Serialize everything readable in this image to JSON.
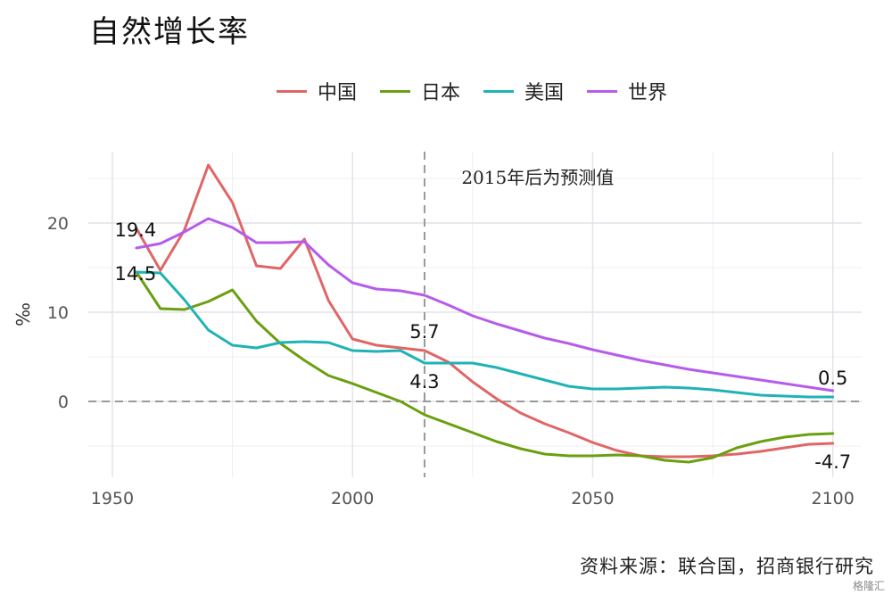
{
  "title": "自然增长率",
  "legend": [
    {
      "name": "中国",
      "color": "#E06666"
    },
    {
      "name": "日本",
      "color": "#6AA00F"
    },
    {
      "name": "美国",
      "color": "#1FB3B5"
    },
    {
      "name": "世界",
      "color": "#B65CEB"
    }
  ],
  "source": "资料来源：联合国，招商银行研究",
  "watermark": "格隆汇",
  "chart_data": {
    "type": "line",
    "title": "自然增长率",
    "xlabel": "",
    "ylabel": "‰",
    "xlim": [
      1945,
      2106
    ],
    "ylim": [
      -8.5,
      28
    ],
    "xticks": [
      1950,
      2000,
      2050,
      2100
    ],
    "yticks": [
      0,
      10,
      20
    ],
    "grid": true,
    "legend_position": "top",
    "reference_lines": [
      {
        "axis": "y",
        "value": 0,
        "style": "dashed"
      },
      {
        "axis": "x",
        "value": 2015,
        "style": "dashed"
      }
    ],
    "annotation": {
      "text": "2015年后为预测值",
      "x": 2016,
      "y": 24.9
    },
    "series": [
      {
        "name": "中国",
        "color": "#E06666",
        "x": [
          1955,
          1960,
          1965,
          1970,
          1975,
          1980,
          1985,
          1990,
          1995,
          2000,
          2005,
          2010,
          2015,
          2020,
          2025,
          2030,
          2035,
          2040,
          2045,
          2050,
          2055,
          2060,
          2065,
          2070,
          2075,
          2080,
          2085,
          2090,
          2095,
          2100
        ],
        "values": [
          19.4,
          14.7,
          19.2,
          26.5,
          22.3,
          15.2,
          14.9,
          18.2,
          11.3,
          7.0,
          6.3,
          6.0,
          5.7,
          4.4,
          2.2,
          0.3,
          -1.3,
          -2.5,
          -3.5,
          -4.6,
          -5.5,
          -6.1,
          -6.2,
          -6.2,
          -6.1,
          -5.9,
          -5.6,
          -5.2,
          -4.8,
          -4.7
        ]
      },
      {
        "name": "日本",
        "color": "#6AA00F",
        "x": [
          1955,
          1960,
          1965,
          1970,
          1975,
          1980,
          1985,
          1990,
          1995,
          2000,
          2005,
          2010,
          2015,
          2020,
          2025,
          2030,
          2035,
          2040,
          2045,
          2050,
          2055,
          2060,
          2065,
          2070,
          2075,
          2080,
          2085,
          2090,
          2095,
          2100
        ],
        "values": [
          14.5,
          10.4,
          10.3,
          11.2,
          12.5,
          9.0,
          6.5,
          4.6,
          2.9,
          2.0,
          1.0,
          0.0,
          -1.5,
          -2.5,
          -3.5,
          -4.5,
          -5.3,
          -5.9,
          -6.1,
          -6.1,
          -6.0,
          -6.1,
          -6.6,
          -6.8,
          -6.3,
          -5.2,
          -4.5,
          -4.0,
          -3.7,
          -3.6
        ]
      },
      {
        "name": "美国",
        "color": "#1FB3B5",
        "x": [
          1955,
          1960,
          1965,
          1970,
          1975,
          1980,
          1985,
          1990,
          1995,
          2000,
          2005,
          2010,
          2015,
          2020,
          2025,
          2030,
          2035,
          2040,
          2045,
          2050,
          2055,
          2060,
          2065,
          2070,
          2075,
          2080,
          2085,
          2090,
          2095,
          2100
        ],
        "values": [
          14.5,
          14.4,
          11.4,
          8.0,
          6.3,
          6.0,
          6.6,
          6.7,
          6.6,
          5.7,
          5.6,
          5.7,
          4.3,
          4.3,
          4.3,
          3.8,
          3.1,
          2.4,
          1.7,
          1.4,
          1.4,
          1.5,
          1.6,
          1.5,
          1.3,
          1.0,
          0.7,
          0.6,
          0.5,
          0.5
        ]
      },
      {
        "name": "世界",
        "color": "#B65CEB",
        "x": [
          1955,
          1960,
          1965,
          1970,
          1975,
          1980,
          1985,
          1990,
          1995,
          2000,
          2005,
          2010,
          2015,
          2020,
          2025,
          2030,
          2035,
          2040,
          2045,
          2050,
          2055,
          2060,
          2065,
          2070,
          2075,
          2080,
          2085,
          2090,
          2095,
          2100
        ],
        "values": [
          17.2,
          17.7,
          19.0,
          20.5,
          19.5,
          17.8,
          17.8,
          17.9,
          15.3,
          13.3,
          12.6,
          12.4,
          11.9,
          10.8,
          9.6,
          8.7,
          7.9,
          7.1,
          6.5,
          5.8,
          5.2,
          4.6,
          4.1,
          3.6,
          3.2,
          2.8,
          2.4,
          2.0,
          1.6,
          1.2
        ]
      }
    ],
    "data_labels": [
      {
        "text": "19.4",
        "series": "中国",
        "x": 1955,
        "y": 19.4,
        "anchor": "left"
      },
      {
        "text": "14.5",
        "series": "日本",
        "x": 1955,
        "y": 14.5,
        "anchor": "left"
      },
      {
        "text": "5.7",
        "series": "中国",
        "x": 2015,
        "y": 5.7,
        "anchor": "above"
      },
      {
        "text": "4.3",
        "series": "美国",
        "x": 2015,
        "y": 4.3,
        "anchor": "below"
      },
      {
        "text": "0.5",
        "series": "美国",
        "x": 2100,
        "y": 0.5,
        "anchor": "above"
      },
      {
        "text": "-4.7",
        "series": "中国",
        "x": 2100,
        "y": -4.7,
        "anchor": "below"
      }
    ]
  }
}
